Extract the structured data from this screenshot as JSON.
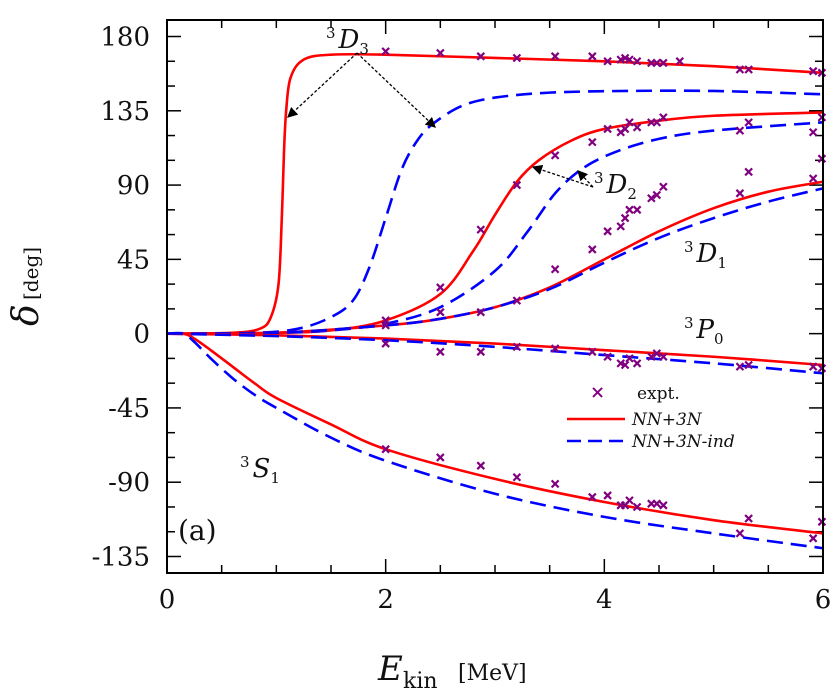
{
  "chart_data": {
    "type": "line",
    "panel_label": "(a)",
    "xlabel": {
      "main": "E",
      "sub": "kin",
      "unit": "[MeV]"
    },
    "ylabel": {
      "main": "δ",
      "unit": "[deg]"
    },
    "xlim": [
      0,
      6
    ],
    "ylim": [
      -145,
      190
    ],
    "xticks": [
      0,
      2,
      4,
      6
    ],
    "yticks": [
      -135,
      -90,
      -45,
      0,
      45,
      90,
      135,
      180
    ],
    "grid": false,
    "legend": {
      "placement": "right-middle",
      "entries": [
        {
          "label": "expt.",
          "style": "marker"
        },
        {
          "label": "NN+3N",
          "style": "solid"
        },
        {
          "label": "NN+3N-ind",
          "style": "dashed"
        }
      ]
    },
    "colors": {
      "NN+3N": "#ff0000",
      "NN+3N-ind": "#0000ff",
      "expt.": "#800080"
    },
    "channel_labels": [
      {
        "sup": "3",
        "main": "D",
        "sub": "3"
      },
      {
        "sup": "3",
        "main": "D",
        "sub": "2"
      },
      {
        "sup": "3",
        "main": "D",
        "sub": "1"
      },
      {
        "sup": "3",
        "main": "P",
        "sub": "0"
      },
      {
        "sup": "3",
        "main": "S",
        "sub": "1"
      }
    ],
    "series": [
      {
        "name": "NN+3N",
        "channel": "3D3",
        "x": [
          0,
          0.6,
          0.85,
          0.95,
          1.02,
          1.05,
          1.07,
          1.09,
          1.13,
          1.25,
          1.5,
          2,
          3,
          4,
          5,
          6
        ],
        "y": [
          0,
          0.5,
          3,
          10,
          30,
          70,
          110,
          135,
          155,
          166,
          169,
          169,
          167,
          165,
          162,
          158
        ]
      },
      {
        "name": "NN+3N-ind",
        "channel": "3D3",
        "x": [
          0,
          0.8,
          1.2,
          1.5,
          1.7,
          1.85,
          2.0,
          2.15,
          2.3,
          2.45,
          2.7,
          3.0,
          3.5,
          4.2,
          5,
          6
        ],
        "y": [
          0,
          0.5,
          3,
          10,
          20,
          40,
          70,
          100,
          118,
          128,
          138,
          143,
          146,
          147,
          147,
          145
        ]
      },
      {
        "name": "NN+3N",
        "channel": "3D2",
        "x": [
          0,
          1,
          1.5,
          2,
          2.5,
          2.8,
          3.0,
          3.2,
          3.4,
          3.7,
          4,
          4.5,
          5,
          6
        ],
        "y": [
          0,
          0.5,
          2,
          8,
          24,
          50,
          72,
          92,
          105,
          117,
          124,
          129,
          132,
          134
        ]
      },
      {
        "name": "NN+3N-ind",
        "channel": "3D2",
        "x": [
          0,
          1,
          1.5,
          2,
          2.5,
          3,
          3.3,
          3.55,
          3.8,
          4.1,
          4.5,
          5,
          6
        ],
        "y": [
          0,
          0.5,
          2,
          6,
          16,
          38,
          62,
          85,
          100,
          110,
          118,
          123,
          128
        ]
      },
      {
        "name": "NN+3N",
        "channel": "3D1",
        "x": [
          0,
          1,
          2,
          2.5,
          3,
          3.5,
          4,
          4.5,
          5,
          5.5,
          6
        ],
        "y": [
          0,
          0.5,
          5,
          9,
          16,
          28,
          45,
          62,
          76,
          86,
          92
        ]
      },
      {
        "name": "NN+3N-ind",
        "channel": "3D1",
        "x": [
          0,
          1,
          2,
          2.5,
          3,
          3.5,
          4,
          4.5,
          5,
          5.5,
          6
        ],
        "y": [
          0,
          0.5,
          5,
          9,
          16,
          27,
          43,
          58,
          70,
          80,
          88
        ]
      },
      {
        "name": "NN+3N",
        "channel": "3P0",
        "x": [
          0,
          1,
          2,
          3,
          4,
          5,
          6
        ],
        "y": [
          0,
          -1,
          -3,
          -6,
          -10,
          -14,
          -19
        ]
      },
      {
        "name": "NN+3N-ind",
        "channel": "3P0",
        "x": [
          0,
          1,
          2,
          3,
          4,
          5,
          6
        ],
        "y": [
          0,
          -1.5,
          -4,
          -8,
          -13,
          -18,
          -24
        ]
      },
      {
        "name": "NN+3N",
        "channel": "3S1",
        "x": [
          0,
          0.15,
          0.25,
          0.4,
          0.6,
          0.8,
          1.0,
          1.5,
          2,
          3,
          4,
          5,
          6
        ],
        "y": [
          0,
          0,
          -3,
          -10,
          -20,
          -30,
          -39,
          -55,
          -70,
          -88,
          -102,
          -113,
          -121
        ]
      },
      {
        "name": "NN+3N-ind",
        "channel": "3S1",
        "x": [
          0,
          0.15,
          0.25,
          0.4,
          0.6,
          0.8,
          1.0,
          1.5,
          2,
          3,
          4,
          5,
          6
        ],
        "y": [
          0,
          0,
          -5,
          -15,
          -27,
          -37,
          -45,
          -63,
          -77,
          -97,
          -111,
          -121,
          -130
        ]
      }
    ],
    "expt": {
      "name": "expt.",
      "points": [
        [
          2.0,
          171
        ],
        [
          2.5,
          170
        ],
        [
          2.87,
          168
        ],
        [
          3.2,
          167
        ],
        [
          3.55,
          168
        ],
        [
          3.89,
          168
        ],
        [
          4.03,
          165
        ],
        [
          4.15,
          166
        ],
        [
          4.19,
          167
        ],
        [
          4.23,
          166
        ],
        [
          4.3,
          165
        ],
        [
          4.43,
          164
        ],
        [
          4.48,
          164
        ],
        [
          4.54,
          164
        ],
        [
          4.69,
          165
        ],
        [
          5.24,
          160
        ],
        [
          5.32,
          160
        ],
        [
          5.91,
          159
        ],
        [
          5.99,
          158
        ],
        [
          2.0,
          8
        ],
        [
          2.5,
          28
        ],
        [
          2.87,
          63
        ],
        [
          3.2,
          90
        ],
        [
          3.55,
          108
        ],
        [
          3.89,
          116
        ],
        [
          4.03,
          124
        ],
        [
          4.15,
          122
        ],
        [
          4.19,
          124
        ],
        [
          4.23,
          128
        ],
        [
          4.3,
          125
        ],
        [
          4.43,
          128
        ],
        [
          4.48,
          128
        ],
        [
          4.54,
          131
        ],
        [
          5.24,
          123
        ],
        [
          5.32,
          128
        ],
        [
          5.91,
          122
        ],
        [
          5.99,
          131
        ],
        [
          2.0,
          5
        ],
        [
          2.5,
          13
        ],
        [
          2.87,
          13
        ],
        [
          3.2,
          20
        ],
        [
          3.55,
          39
        ],
        [
          3.89,
          51
        ],
        [
          4.03,
          62
        ],
        [
          4.15,
          65
        ],
        [
          4.19,
          70
        ],
        [
          4.23,
          75
        ],
        [
          4.3,
          75
        ],
        [
          4.43,
          82
        ],
        [
          4.48,
          84
        ],
        [
          4.54,
          89
        ],
        [
          5.24,
          85
        ],
        [
          5.32,
          98
        ],
        [
          5.91,
          94
        ],
        [
          5.99,
          106
        ],
        [
          2.0,
          -6
        ],
        [
          2.5,
          -11
        ],
        [
          2.87,
          -11
        ],
        [
          3.2,
          -8
        ],
        [
          3.55,
          -9
        ],
        [
          3.89,
          -11
        ],
        [
          4.03,
          -14
        ],
        [
          4.15,
          -18
        ],
        [
          4.19,
          -19
        ],
        [
          4.23,
          -15
        ],
        [
          4.3,
          -18
        ],
        [
          4.43,
          -14
        ],
        [
          4.48,
          -12
        ],
        [
          4.54,
          -14
        ],
        [
          5.24,
          -20
        ],
        [
          5.32,
          -19
        ],
        [
          5.91,
          -20
        ],
        [
          5.99,
          -21
        ],
        [
          2.0,
          -70
        ],
        [
          2.5,
          -75
        ],
        [
          2.87,
          -80
        ],
        [
          3.2,
          -87
        ],
        [
          3.55,
          -91
        ],
        [
          3.89,
          -99
        ],
        [
          4.03,
          -98
        ],
        [
          4.15,
          -104
        ],
        [
          4.19,
          -104
        ],
        [
          4.23,
          -101
        ],
        [
          4.3,
          -105
        ],
        [
          4.43,
          -103
        ],
        [
          4.48,
          -103
        ],
        [
          4.54,
          -104
        ],
        [
          5.24,
          -121
        ],
        [
          5.32,
          -112
        ],
        [
          5.91,
          -124
        ],
        [
          5.99,
          -114
        ]
      ]
    }
  }
}
